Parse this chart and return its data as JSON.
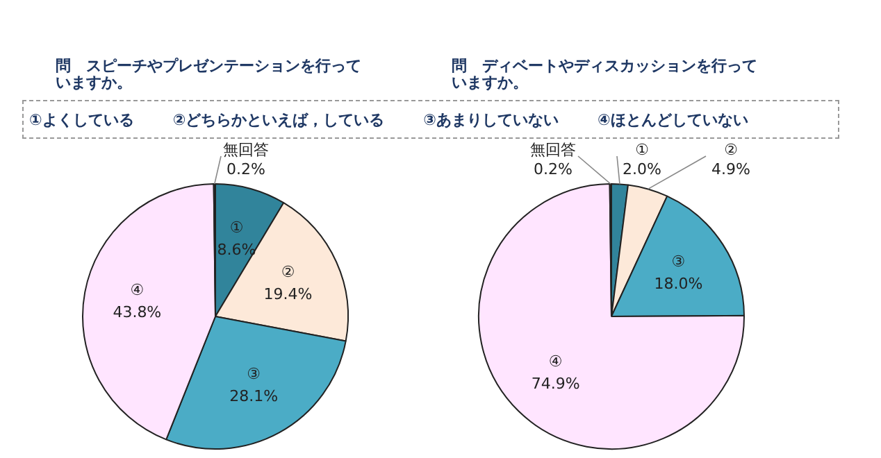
{
  "chart_data": [
    {
      "type": "pie",
      "title": "問　スピーチやプレゼンテーションを行っていますか。",
      "categories": [
        "①",
        "②",
        "③",
        "④",
        "無回答"
      ],
      "values": [
        8.6,
        19.4,
        28.1,
        43.8,
        0.2
      ],
      "value_labels": [
        "8.6%",
        "19.4%",
        "28.1%",
        "43.8%",
        "0.2%"
      ],
      "colors": [
        "#31849b",
        "#fde9d9",
        "#4bacc6",
        "#ffe5ff",
        "#333333"
      ],
      "annotations": [
        "①よくしている",
        "②どちらかといえば，している",
        "③あまりしていない",
        "④ほとんどしていない"
      ]
    },
    {
      "type": "pie",
      "title": "問　ディベートやディスカッションを行っていますか。",
      "categories": [
        "①",
        "②",
        "③",
        "④",
        "無回答"
      ],
      "values": [
        2.0,
        4.9,
        18.0,
        74.9,
        0.2
      ],
      "value_labels": [
        "2.0%",
        "4.9%",
        "18.0%",
        "74.9%",
        "0.2%"
      ],
      "colors": [
        "#31849b",
        "#fde9d9",
        "#4bacc6",
        "#ffe5ff",
        "#333333"
      ]
    }
  ]
}
